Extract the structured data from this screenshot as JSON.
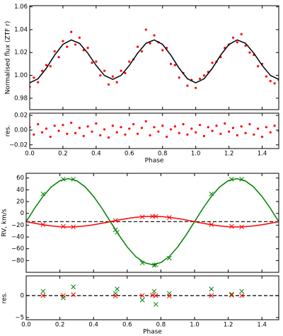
{
  "chart_data": [
    {
      "type": "scatter",
      "ylabel": "Normalised flux (ZTF r)",
      "xlim": [
        0,
        1.5
      ],
      "xticks": [
        0,
        0.2,
        0.4,
        0.6,
        0.8,
        1,
        1.2,
        1.4
      ],
      "xticklabels": false,
      "ylim": [
        0.97,
        1.061
      ],
      "yticks": [
        0.98,
        {
          "value": 1,
          "label": "1.00"
        },
        1.02,
        1.04,
        1.06
      ],
      "series": [
        {
          "color": "#ff0000",
          "marker": "dot",
          "x": [
            0,
            0.025,
            0.05,
            0.075,
            0.1,
            0.125,
            0.15,
            0.175,
            0.2,
            0.225,
            0.25,
            0.275,
            0.3,
            0.325,
            0.35,
            0.375,
            0.4,
            0.425,
            0.45,
            0.475,
            0.5,
            0.525,
            0.55,
            0.575,
            0.6,
            0.625,
            0.65,
            0.675,
            0.7,
            0.725,
            0.75,
            0.775,
            0.8,
            0.825,
            0.85,
            0.875,
            0.9,
            0.925,
            0.95,
            0.975,
            1,
            1.025,
            1.05,
            1.075,
            1.1,
            1.125,
            1.15,
            1.175,
            1.2,
            1.225,
            1.25,
            1.275,
            1.3,
            1.325,
            1.35,
            1.375,
            1.4,
            1.425,
            1.45,
            1.475,
            1.5
          ],
          "values": [
            0.99,
            0.998,
            0.994,
            1.004,
            1.009,
            1.008,
            1.021,
            1.016,
            1.03,
            1.025,
            1.038,
            1.027,
            1.033,
            1.022,
            1.024,
            1.011,
            1.012,
            1.0,
            1.004,
            0.992,
            0.999,
            0.994,
            1.004,
            1.002,
            1.012,
            1.014,
            1.025,
            1.021,
            1.04,
            1.028,
            1.035,
            1.029,
            1.022,
            1.024,
            1.01,
            1.009,
            0.998,
            1.002,
            0.991,
            0.996,
            0.989,
            0.997,
            1.0,
            1.003,
            1.011,
            1.012,
            1.016,
            1.024,
            1.027,
            1.033,
            1.029,
            1.036,
            1.026,
            1.02,
            1.018,
            1.008,
            1.01,
            0.999,
            0.995,
            0.993,
            0.996
          ]
        },
        {
          "color": "#000000",
          "linestyle": "solid",
          "x": [
            0,
            0.05,
            0.1,
            0.15,
            0.2,
            0.25,
            0.3,
            0.35,
            0.4,
            0.45,
            0.5,
            0.55,
            0.6,
            0.65,
            0.7,
            0.75,
            0.8,
            0.85,
            0.9,
            0.95,
            1,
            1.05,
            1.1,
            1.15,
            1.2,
            1.25,
            1.3,
            1.35,
            1.4,
            1.45,
            1.5
          ],
          "values": [
            0.9935,
            0.997,
            1.0062,
            1.0177,
            1.0271,
            1.031,
            1.028,
            1.0194,
            1.0087,
            0.9999,
            0.9965,
            0.9999,
            1.0087,
            1.0194,
            1.028,
            1.031,
            1.0271,
            1.0177,
            1.0062,
            0.997,
            0.9935,
            0.997,
            1.0062,
            1.0177,
            1.0271,
            1.031,
            1.028,
            1.0194,
            1.0087,
            0.9999,
            0.9965
          ]
        }
      ]
    },
    {
      "type": "scatter",
      "ylabel": "res.",
      "xlabel": "Phase",
      "xlim": [
        0,
        1.5
      ],
      "xticks": [
        {
          "value": 0,
          "label": "0.0"
        },
        0.2,
        0.4,
        0.6,
        0.8,
        {
          "value": 1,
          "label": "1.0"
        },
        1.2,
        1.4
      ],
      "ylim": [
        -0.025,
        0.023
      ],
      "yticks": [
        {
          "value": -0.02,
          "label": "−0.02"
        },
        {
          "value": 0,
          "label": "0.00"
        },
        0.02
      ],
      "series": [
        {
          "color": "#ff0000",
          "marker": "dot",
          "x": [
            0,
            0.025,
            0.05,
            0.075,
            0.1,
            0.125,
            0.15,
            0.175,
            0.2,
            0.225,
            0.25,
            0.275,
            0.3,
            0.325,
            0.35,
            0.375,
            0.4,
            0.425,
            0.45,
            0.475,
            0.5,
            0.525,
            0.55,
            0.575,
            0.6,
            0.625,
            0.65,
            0.675,
            0.7,
            0.725,
            0.75,
            0.775,
            0.8,
            0.825,
            0.85,
            0.875,
            0.9,
            0.925,
            0.95,
            0.975,
            1,
            1.025,
            1.05,
            1.075,
            1.1,
            1.125,
            1.15,
            1.175,
            1.2,
            1.225,
            1.25,
            1.275,
            1.3,
            1.325,
            1.35,
            1.375,
            1.4,
            1.425,
            1.45,
            1.475,
            1.5
          ],
          "values": [
            0.004,
            -0.006,
            0.008,
            -0.003,
            0.002,
            -0.009,
            0.006,
            -0.001,
            0.007,
            -0.005,
            0.01,
            -0.004,
            0.003,
            -0.008,
            0.005,
            -0.002,
            0.009,
            -0.007,
            0.001,
            -0.01,
            0.006,
            -0.003,
            0.004,
            -0.006,
            0.002,
            0.008,
            -0.005,
            0.003,
            0.012,
            -0.007,
            0.004,
            -0.002,
            0.006,
            -0.009,
            0.001,
            0.005,
            -0.004,
            0.008,
            -0.006,
            0.002,
            -0.003,
            0.007,
            -0.008,
            0.004,
            -0.001,
            0.006,
            -0.005,
            0.009,
            -0.002,
            0.003,
            -0.007,
            0.005,
            -0.004,
            0.008,
            -0.006,
            0.002,
            -0.009,
            0.004,
            -0.003,
            0.006,
            -0.001
          ]
        }
      ]
    },
    {
      "type": "scatter",
      "ylabel": "RV, km/s",
      "xlim": [
        0,
        1.5
      ],
      "xticks": [
        0,
        0.2,
        0.4,
        0.6,
        0.8,
        1,
        1.2,
        1.4
      ],
      "xticklabels": false,
      "ylim": [
        -100,
        68
      ],
      "yticks": [
        {
          "value": -80,
          "label": "−80"
        },
        {
          "value": -60,
          "label": "−60"
        },
        {
          "value": -40,
          "label": "−40"
        },
        {
          "value": -20,
          "label": "−20"
        },
        0,
        20,
        40,
        60
      ],
      "hline": -14,
      "series": [
        {
          "color": "#008000",
          "linestyle": "solid",
          "x": [
            0,
            0.05,
            0.1,
            0.15,
            0.2,
            0.25,
            0.3,
            0.35,
            0.4,
            0.45,
            0.5,
            0.55,
            0.6,
            0.65,
            0.7,
            0.75,
            0.8,
            0.85,
            0.9,
            0.95,
            1,
            1.05,
            1.1,
            1.15,
            1.2,
            1.25,
            1.3,
            1.35,
            1.4,
            1.45,
            1.5
          ],
          "values": [
            -14,
            8.6,
            28.9,
            45.1,
            55.4,
            59,
            55.4,
            45.1,
            28.9,
            8.6,
            -14,
            -36.6,
            -56.9,
            -73.1,
            -83.4,
            -87,
            -83.4,
            -73.1,
            -56.9,
            -36.6,
            -14,
            8.6,
            28.9,
            45.1,
            55.4,
            59,
            55.4,
            45.1,
            28.9,
            8.6,
            -14
          ]
        },
        {
          "color": "#ff0000",
          "linestyle": "solid",
          "x": [
            0,
            0.05,
            0.1,
            0.15,
            0.2,
            0.25,
            0.3,
            0.35,
            0.4,
            0.45,
            0.5,
            0.55,
            0.6,
            0.65,
            0.7,
            0.75,
            0.8,
            0.85,
            0.9,
            0.95,
            1,
            1.05,
            1.1,
            1.15,
            1.2,
            1.25,
            1.3,
            1.35,
            1.4,
            1.45,
            1.5
          ],
          "values": [
            -14,
            -16.8,
            -19.3,
            -21.3,
            -22.6,
            -23,
            -22.6,
            -21.3,
            -19.3,
            -16.8,
            -14,
            -11.2,
            -8.7,
            -6.7,
            -5.4,
            -5,
            -5.4,
            -6.7,
            -8.7,
            -11.2,
            -14,
            -16.8,
            -19.3,
            -21.3,
            -22.6,
            -23,
            -22.6,
            -21.3,
            -19.3,
            -16.8,
            -14
          ]
        },
        {
          "color": "#008000",
          "marker": "x",
          "x": [
            0.1,
            0.22,
            0.28,
            0.53,
            0.54,
            0.69,
            0.76,
            0.77,
            0.85,
            1.1,
            1.22,
            1.28
          ],
          "values": [
            33,
            58,
            58,
            -28,
            -32,
            -84,
            -88,
            -87,
            -76,
            33,
            58,
            58
          ]
        },
        {
          "color": "#ff0000",
          "marker": "x",
          "x": [
            0.1,
            0.22,
            0.28,
            0.53,
            0.69,
            0.75,
            0.77,
            0.85,
            1.1,
            1.22,
            1.28
          ],
          "values": [
            -19,
            -22,
            -23,
            -12,
            -6,
            -5,
            -5,
            -7,
            -19,
            -22,
            -23
          ]
        }
      ]
    },
    {
      "type": "scatter",
      "ylabel": "res.",
      "xlabel": "Phase",
      "xlim": [
        0,
        1.5
      ],
      "xticks": [
        {
          "value": 0,
          "label": "0.0"
        },
        0.2,
        0.4,
        0.6,
        0.8,
        {
          "value": 1,
          "label": "1.0"
        },
        1.2,
        1.4
      ],
      "ylim": [
        -5.5,
        4.5
      ],
      "yticks": [
        {
          "value": -5,
          "label": "−5"
        },
        0
      ],
      "hline": 0,
      "series": [
        {
          "color": "#008000",
          "marker": "x",
          "x": [
            0.1,
            0.22,
            0.28,
            0.53,
            0.54,
            0.69,
            0.76,
            0.77,
            0.85,
            1.1,
            1.22,
            1.28
          ],
          "values": [
            1,
            -0.5,
            2,
            0.5,
            1.5,
            -1,
            1,
            -2,
            0.5,
            1.5,
            0.3,
            1
          ]
        },
        {
          "color": "#ff0000",
          "marker": "x",
          "x": [
            0.1,
            0.22,
            0.28,
            0.53,
            0.69,
            0.75,
            0.77,
            0.85,
            1.1,
            1.22,
            1.28
          ],
          "values": [
            0,
            0,
            0.2,
            -0.1,
            0,
            0.1,
            0,
            -0.1,
            0,
            0.1,
            0
          ]
        }
      ]
    }
  ]
}
